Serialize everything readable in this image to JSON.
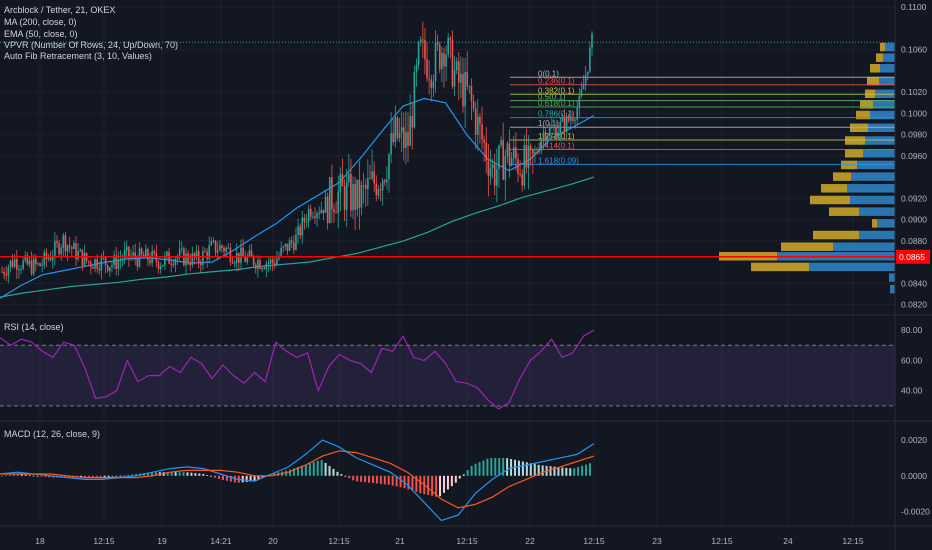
{
  "header": {
    "title": "Arcblock / Tether, 21, OKEX",
    "indicators": [
      "MA (200, close, 0)",
      "EMA (50, close, 0)",
      "VPVR (Number Of Rows, 24, Up/Down, 70)",
      "Auto Fib Retracement (3, 10, Values)"
    ]
  },
  "colors": {
    "up": "#26a69a",
    "down": "#ef5350",
    "ma": "#2196f3",
    "ema": "#26a69a",
    "rsi": "#9c27b0",
    "macd": "#2196f3",
    "signal": "#ff5722",
    "vpvr_up": "#2f7fc1",
    "vpvr_down": "#c9a227",
    "price_line": "#ff0000",
    "bg": "#131722"
  },
  "chart_data": [
    {
      "type": "candlestick",
      "y_ticks": [
        "0.1100",
        "0.1060",
        "0.1020",
        "0.1000",
        "0.0980",
        "0.0960",
        "0.0920",
        "0.0900",
        "0.0880",
        "0.0840",
        "0.0820"
      ],
      "ylim": [
        0.0813,
        0.1103
      ],
      "current_price": "0.0865",
      "price_line": 0.0865,
      "top_line": 0.1067,
      "fib_levels": [
        {
          "label": "0(0.1)",
          "value": 0.1034,
          "color": "#b2b5be"
        },
        {
          "label": "0.236(0.1)",
          "value": 0.1027,
          "color": "#ef5350"
        },
        {
          "label": "0.382(0.1)",
          "value": 0.1018,
          "color": "#c9c24a"
        },
        {
          "label": "0.5(0.1)",
          "value": 0.1012,
          "color": "#66bb6a"
        },
        {
          "label": "0.618(0.1)",
          "value": 0.1006,
          "color": "#4caf50"
        },
        {
          "label": "0.786(0.1)",
          "value": 0.0996,
          "color": "#26a69a"
        },
        {
          "label": "1(0.1)",
          "value": 0.0987,
          "color": "#b2b5be"
        },
        {
          "label": "1.272(0.1)",
          "value": 0.0975,
          "color": "#c9c24a"
        },
        {
          "label": "1.414(0.1)",
          "value": 0.0966,
          "color": "#ef5350"
        },
        {
          "label": "1.618(0.09)",
          "value": 0.0952,
          "color": "#2196f3"
        }
      ],
      "price_path": [
        0.0851,
        0.0862,
        0.0857,
        0.0856,
        0.0867,
        0.0881,
        0.0869,
        0.086,
        0.0861,
        0.0858,
        0.0866,
        0.0864,
        0.0864,
        0.086,
        0.0866,
        0.0864,
        0.0862,
        0.0873,
        0.0874,
        0.0866,
        0.0863,
        0.0861,
        0.0859,
        0.0872,
        0.0883,
        0.091,
        0.0911,
        0.0923,
        0.0925,
        0.0918,
        0.0932,
        0.0944,
        0.0979,
        0.0971,
        0.1058,
        0.1044,
        0.1066,
        0.1031,
        0.1016,
        0.0977,
        0.0944,
        0.0962,
        0.0954,
        0.0948,
        0.0982,
        0.0985,
        0.0992,
        0.1009,
        0.1067
      ],
      "ma": [
        0.0827,
        0.0831,
        0.0834,
        0.0837,
        0.0839,
        0.0841,
        0.0844,
        0.0846,
        0.0849,
        0.0851,
        0.0853,
        0.0856,
        0.0858,
        0.086,
        0.0864,
        0.0868,
        0.0874,
        0.088,
        0.0888,
        0.0898,
        0.0906,
        0.0913,
        0.0921,
        0.0927,
        0.0933,
        0.094
      ],
      "ema": [
        0.0826,
        0.0838,
        0.0848,
        0.0852,
        0.0856,
        0.086,
        0.0863,
        0.0864,
        0.0862,
        0.0859,
        0.086,
        0.0871,
        0.0884,
        0.0896,
        0.0911,
        0.0923,
        0.0935,
        0.0958,
        0.0983,
        0.1007,
        0.1014,
        0.101,
        0.098,
        0.0957,
        0.0946,
        0.0957,
        0.0977,
        0.0987,
        0.0998
      ]
    },
    {
      "type": "volume-profile",
      "rows": [
        {
          "price": 0.1062,
          "up": 10,
          "down": 5
        },
        {
          "price": 0.1052,
          "up": 12,
          "down": 7
        },
        {
          "price": 0.1042,
          "up": 15,
          "down": 10
        },
        {
          "price": 0.103,
          "up": 16,
          "down": 12
        },
        {
          "price": 0.1018,
          "up": 20,
          "down": 10
        },
        {
          "price": 0.1008,
          "up": 22,
          "down": 13
        },
        {
          "price": 0.0998,
          "up": 25,
          "down": 14
        },
        {
          "price": 0.0986,
          "up": 27,
          "down": 18
        },
        {
          "price": 0.0974,
          "up": 30,
          "down": 20
        },
        {
          "price": 0.0962,
          "up": 32,
          "down": 18
        },
        {
          "price": 0.0951,
          "up": 38,
          "down": 16
        },
        {
          "price": 0.094,
          "up": 44,
          "down": 18
        },
        {
          "price": 0.0929,
          "up": 48,
          "down": 26
        },
        {
          "price": 0.0918,
          "up": 45,
          "down": 40
        },
        {
          "price": 0.0907,
          "up": 36,
          "down": 30
        },
        {
          "price": 0.0896,
          "up": 18,
          "down": 5
        },
        {
          "price": 0.0885,
          "up": 36,
          "down": 46
        },
        {
          "price": 0.0874,
          "up": 62,
          "down": 52
        },
        {
          "price": 0.0865,
          "up": 118,
          "down": 58
        },
        {
          "price": 0.0855,
          "up": 86,
          "down": 58
        },
        {
          "price": 0.0845,
          "up": 6,
          "down": 0
        },
        {
          "price": 0.0834,
          "up": 5,
          "down": 0
        }
      ]
    },
    {
      "type": "line",
      "title": "RSI (14, close)",
      "y_ticks": [
        "80.00",
        "60.00",
        "40.00"
      ],
      "ylim": [
        22,
        88
      ],
      "bands": [
        70,
        30
      ],
      "values": [
        75,
        70,
        74,
        72,
        66,
        62,
        72,
        70,
        55,
        35,
        36,
        40,
        60,
        46,
        50,
        50,
        56,
        52,
        62,
        58,
        48,
        57,
        50,
        45,
        52,
        46,
        72,
        66,
        62,
        65,
        40,
        56,
        64,
        60,
        58,
        52,
        68,
        66,
        76,
        62,
        60,
        66,
        58,
        46,
        45,
        42,
        34,
        28,
        32,
        48,
        60,
        66,
        74,
        62,
        65,
        76,
        80
      ]
    },
    {
      "type": "bar",
      "title": "MACD (12, 26, close, 9)",
      "y_ticks": [
        "0.0020",
        "0.0000",
        "-0.0020"
      ],
      "ylim": [
        -0.0027,
        0.0029
      ],
      "macd": [
        0.0001,
        0.0002,
        0.0001,
        0.0,
        -0.0001,
        -0.0002,
        -0.0002,
        -0.0001,
        0.0,
        0.0002,
        0.0004,
        0.0005,
        0.0004,
        0.0001,
        -0.0002,
        -0.0003,
        0.0001,
        0.0005,
        0.0012,
        0.002,
        0.0016,
        0.001,
        0.0006,
        0.0002,
        -0.0005,
        -0.0015,
        -0.0025,
        -0.0022,
        -0.001,
        -0.0002,
        0.0004,
        0.0006,
        0.0008,
        0.001,
        0.0012,
        0.0018
      ],
      "signal": [
        0.0001,
        0.0001,
        0.0001,
        0.0001,
        0.0,
        -0.0001,
        -0.0001,
        -0.0001,
        -0.0001,
        0.0,
        0.0002,
        0.0003,
        0.0003,
        0.0003,
        0.0002,
        0.0,
        0.0,
        0.0002,
        0.0006,
        0.0011,
        0.0014,
        0.0013,
        0.001,
        0.0007,
        0.0002,
        -0.0005,
        -0.0013,
        -0.0018,
        -0.0016,
        -0.0012,
        -0.0006,
        -0.0002,
        0.0002,
        0.0005,
        0.0008,
        0.0011
      ]
    }
  ],
  "time_axis": {
    "labels": [
      "18",
      "12:15",
      "19",
      "14:21",
      "20",
      "12:15",
      "21",
      "12:15",
      "22",
      "12:15",
      "23",
      "12:15",
      "24",
      "12:15"
    ]
  }
}
